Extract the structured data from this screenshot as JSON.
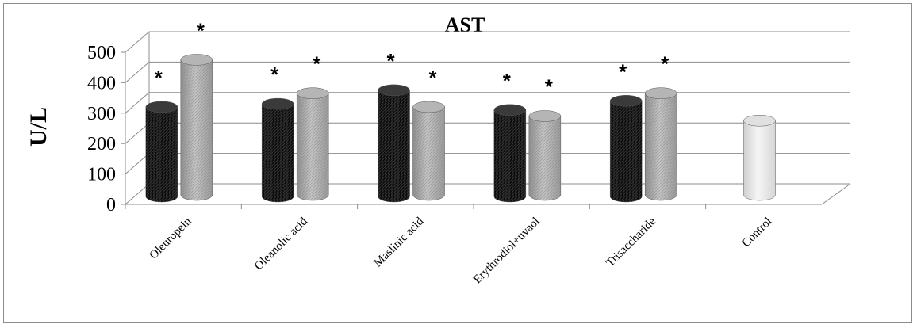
{
  "chart_data": {
    "type": "bar",
    "title": "AST",
    "ylabel": "U/L",
    "xlabel": "",
    "ylim": [
      0,
      500
    ],
    "yticks": [
      0,
      100,
      200,
      300,
      400,
      500
    ],
    "categories": [
      "Oleuropein",
      "Oleanolic acid",
      "Maslinic acid",
      "Erythrodiol+uvaol",
      "Trisaccharide",
      "Control"
    ],
    "series": [
      {
        "color": "#1a1a1a",
        "values": [
          310,
          320,
          365,
          300,
          330,
          null
        ]
      },
      {
        "color": "#a6a6a6",
        "values": [
          465,
          355,
          310,
          280,
          355,
          265
        ]
      }
    ],
    "annotations": [
      [
        "*",
        "*"
      ],
      [
        "*",
        "*"
      ],
      [
        "*",
        "*"
      ],
      [
        "*",
        "*"
      ],
      [
        "*",
        "*"
      ],
      [
        "",
        ""
      ]
    ],
    "grid": true,
    "style": "3d-cylinder"
  }
}
